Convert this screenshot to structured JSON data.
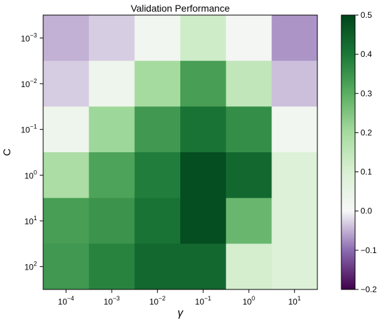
{
  "chart_data": {
    "type": "heatmap",
    "title": "Validation Performance",
    "xlabel": "γ",
    "ylabel": "C",
    "x_tick_base": "10",
    "x_tick_exponents": [
      "−4",
      "−3",
      "−2",
      "−1",
      "0",
      "1"
    ],
    "y_tick_base": "10",
    "y_tick_exponents": [
      "−3",
      "−2",
      "−1",
      "0",
      "1",
      "2"
    ],
    "values": [
      [
        -0.05,
        -0.03,
        0.02,
        0.12,
        0.01,
        -0.07
      ],
      [
        -0.03,
        0.03,
        0.2,
        0.33,
        0.15,
        -0.04
      ],
      [
        0.03,
        0.21,
        0.34,
        0.41,
        0.36,
        0.02
      ],
      [
        0.19,
        0.32,
        0.39,
        0.48,
        0.43,
        0.09
      ],
      [
        0.33,
        0.35,
        0.41,
        0.48,
        0.28,
        0.09
      ],
      [
        0.34,
        0.38,
        0.43,
        0.43,
        0.11,
        0.09
      ]
    ],
    "colorbar": {
      "min": -0.2,
      "max": 0.5,
      "ticks": [
        -0.2,
        -0.1,
        0.0,
        0.1,
        0.2,
        0.3,
        0.4,
        0.5
      ],
      "tick_labels": [
        "−0.2",
        "−0.1",
        "0.0",
        "0.1",
        "0.2",
        "0.3",
        "0.4",
        "0.5"
      ],
      "colormap": "PRGn",
      "center": 0.0
    }
  }
}
